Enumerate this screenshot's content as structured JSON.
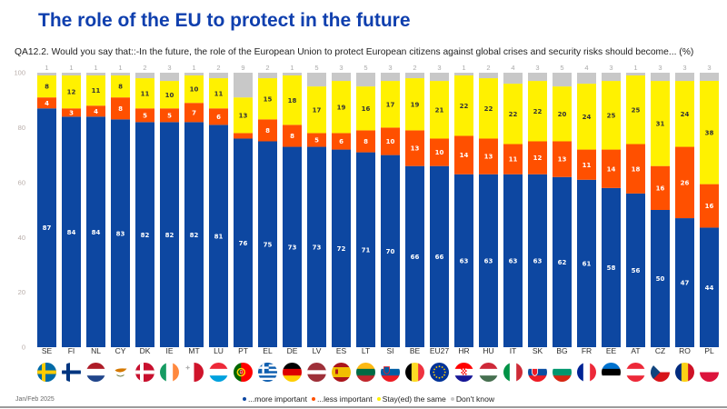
{
  "chart_data": {
    "type": "bar",
    "stacked": true,
    "title": "The role of the EU to protect in the future",
    "subtitle": "QA12.2. Would you say that::-In the future, the role of the European Union to protect European citizens against global crises and security risks should become... (%)",
    "xlabel": "",
    "ylabel": "",
    "ylim": [
      0,
      100
    ],
    "yticks": [
      0,
      20,
      40,
      60,
      80,
      100
    ],
    "grid": false,
    "legend_position": "bottom",
    "categories": [
      "SE",
      "FI",
      "NL",
      "CY",
      "DK",
      "IE",
      "MT",
      "LU",
      "PT",
      "EL",
      "DE",
      "LV",
      "ES",
      "LT",
      "SI",
      "BE",
      "EU27",
      "HR",
      "HU",
      "IT",
      "SK",
      "BG",
      "FR",
      "EE",
      "AT",
      "CZ",
      "RO",
      "PL"
    ],
    "series": [
      {
        "name": "...more important",
        "color": "#0d47a1",
        "label_color": "#ffffff",
        "values": [
          87,
          84,
          84,
          83,
          82,
          82,
          82,
          81,
          76,
          75,
          73,
          73,
          72,
          71,
          70,
          66,
          66,
          63,
          63,
          63,
          63,
          62,
          61,
          58,
          56,
          50,
          47,
          44
        ]
      },
      {
        "name": "...less important",
        "color": "#ff5000",
        "label_color": "#ffffff",
        "values": [
          4,
          3,
          4,
          8,
          5,
          5,
          7,
          6,
          2,
          8,
          8,
          5,
          6,
          8,
          10,
          13,
          10,
          14,
          13,
          11,
          12,
          13,
          11,
          14,
          18,
          16,
          26,
          16
        ]
      },
      {
        "name": "Stay(ed) the same",
        "color": "#fff100",
        "label_color": "#333333",
        "values": [
          8,
          12,
          11,
          8,
          11,
          10,
          10,
          11,
          13,
          15,
          18,
          17,
          19,
          16,
          17,
          19,
          21,
          22,
          22,
          22,
          22,
          20,
          24,
          25,
          25,
          31,
          24,
          38
        ]
      },
      {
        "name": "Don't know",
        "color": "#c8c8c8",
        "label_color": "#a8a8a8",
        "values": [
          1,
          1,
          1,
          1,
          2,
          3,
          1,
          2,
          9,
          2,
          1,
          5,
          3,
          5,
          3,
          2,
          3,
          1,
          2,
          4,
          3,
          5,
          4,
          3,
          1,
          3,
          3,
          3
        ]
      }
    ]
  },
  "x_axis": {
    "flag_icons": [
      "flag-sweden-icon",
      "flag-finland-icon",
      "flag-netherlands-icon",
      "flag-cyprus-icon",
      "flag-denmark-icon",
      "flag-ireland-icon",
      "flag-malta-icon",
      "flag-luxembourg-icon",
      "flag-portugal-icon",
      "flag-greece-icon",
      "flag-germany-icon",
      "flag-latvia-icon",
      "flag-spain-icon",
      "flag-lithuania-icon",
      "flag-slovenia-icon",
      "flag-belgium-icon",
      "flag-eu-icon",
      "flag-croatia-icon",
      "flag-hungary-icon",
      "flag-italy-icon",
      "flag-slovakia-icon",
      "flag-bulgaria-icon",
      "flag-france-icon",
      "flag-estonia-icon",
      "flag-austria-icon",
      "flag-czechia-icon",
      "flag-romania-icon",
      "flag-poland-icon"
    ]
  },
  "footer": {
    "date": "Jan/Feb 2025"
  }
}
